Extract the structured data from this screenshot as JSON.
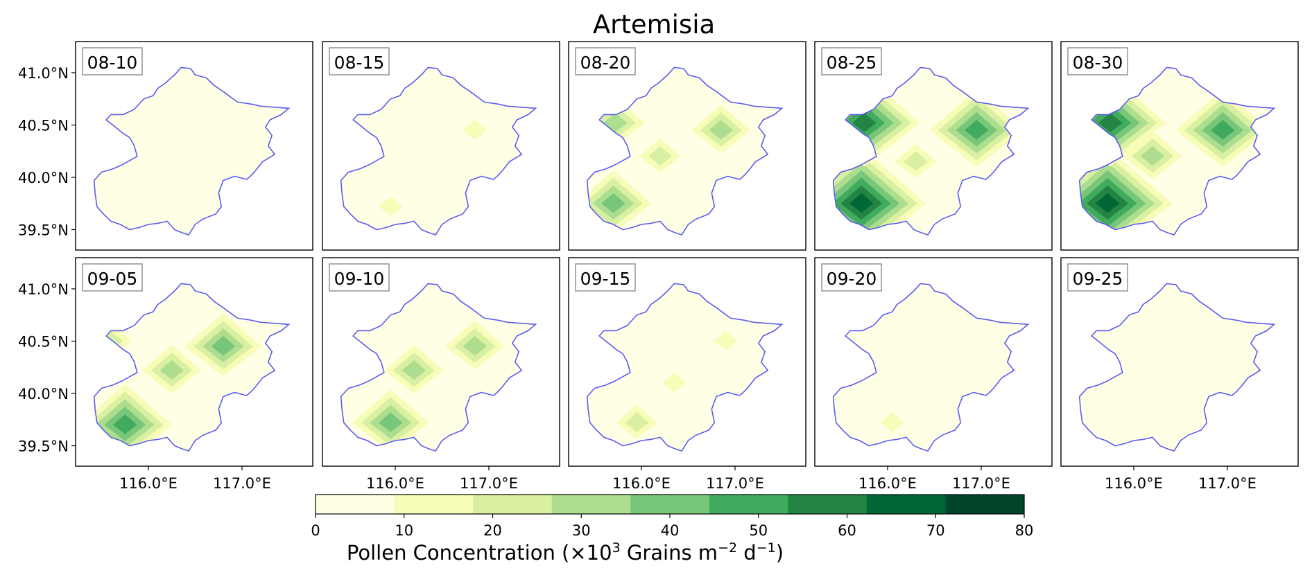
{
  "title": "Artemisia",
  "panels": [
    {
      "date": "08-10",
      "level_ticks": [
        "40.5°N"
      ]
    },
    {
      "date": "08-15"
    },
    {
      "date": "08-20"
    },
    {
      "date": "08-25"
    },
    {
      "date": "08-30"
    },
    {
      "date": "09-05"
    },
    {
      "date": "09-10"
    },
    {
      "date": "09-15"
    },
    {
      "date": "09-20"
    },
    {
      "date": "09-25"
    }
  ],
  "lat_ticks": [
    "41.0°N",
    "40.5°N",
    "40.0°N",
    "39.5°N"
  ],
  "lon_ticks": [
    "116.0°E",
    "117.0°E"
  ],
  "colorbar": {
    "ticks": [
      "0",
      "10",
      "20",
      "30",
      "40",
      "50",
      "60",
      "70",
      "80"
    ],
    "colors": [
      "#ffffe5",
      "#f7fcb9",
      "#d9f0a3",
      "#addd8e",
      "#78c679",
      "#41ab5d",
      "#238443",
      "#006837",
      "#004529"
    ],
    "label_prefix": "Pollen Concentration (×10",
    "label_sup1": "3",
    "label_mid": " Grains m",
    "label_sup2": "−2",
    "label_mid2": " d",
    "label_sup3": "−1",
    "label_suffix": ")"
  },
  "boundary_color": "#5a5cf0",
  "hotspots": {
    "08-10": [],
    "08-15": [
      {
        "lon": 115.95,
        "lat": 39.72,
        "v": 14
      },
      {
        "lon": 116.85,
        "lat": 40.45,
        "v": 12
      }
    ],
    "08-20": [
      {
        "lon": 115.7,
        "lat": 39.75,
        "v": 48
      },
      {
        "lon": 115.72,
        "lat": 40.52,
        "v": 38
      },
      {
        "lon": 116.85,
        "lat": 40.45,
        "v": 30
      },
      {
        "lon": 116.2,
        "lat": 40.2,
        "v": 20
      }
    ],
    "08-25": [
      {
        "lon": 115.72,
        "lat": 39.75,
        "v": 75
      },
      {
        "lon": 115.75,
        "lat": 40.52,
        "v": 62
      },
      {
        "lon": 116.95,
        "lat": 40.45,
        "v": 50
      },
      {
        "lon": 116.3,
        "lat": 40.15,
        "v": 22
      }
    ],
    "08-30": [
      {
        "lon": 115.72,
        "lat": 39.75,
        "v": 74
      },
      {
        "lon": 115.75,
        "lat": 40.52,
        "v": 60
      },
      {
        "lon": 116.95,
        "lat": 40.45,
        "v": 55
      },
      {
        "lon": 116.2,
        "lat": 40.2,
        "v": 32
      }
    ],
    "09-05": [
      {
        "lon": 115.75,
        "lat": 39.7,
        "v": 52
      },
      {
        "lon": 116.8,
        "lat": 40.45,
        "v": 48
      },
      {
        "lon": 116.25,
        "lat": 40.22,
        "v": 36
      },
      {
        "lon": 115.6,
        "lat": 40.5,
        "v": 20
      }
    ],
    "09-10": [
      {
        "lon": 115.95,
        "lat": 39.72,
        "v": 44
      },
      {
        "lon": 116.85,
        "lat": 40.45,
        "v": 32
      },
      {
        "lon": 116.2,
        "lat": 40.22,
        "v": 30
      }
    ],
    "09-15": [
      {
        "lon": 115.95,
        "lat": 39.72,
        "v": 28
      },
      {
        "lon": 116.9,
        "lat": 40.5,
        "v": 16
      },
      {
        "lon": 116.35,
        "lat": 40.1,
        "v": 14
      }
    ],
    "09-20": [
      {
        "lon": 116.05,
        "lat": 39.72,
        "v": 12
      }
    ],
    "09-25": []
  }
}
